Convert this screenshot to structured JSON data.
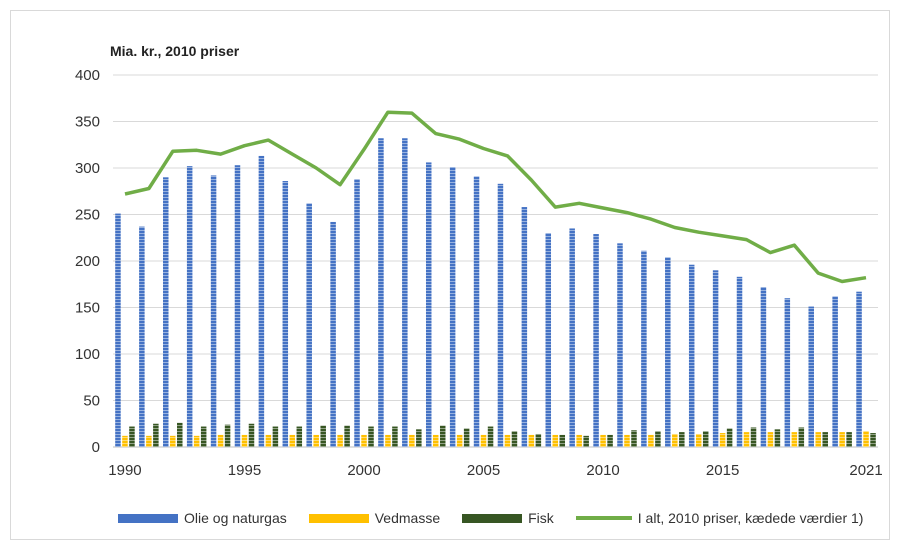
{
  "chart_data": {
    "type": "bar+line",
    "unit_label": "Mia. kr., 2010 priser",
    "years": [
      1990,
      1991,
      1992,
      1993,
      1994,
      1995,
      1996,
      1997,
      1998,
      1999,
      2000,
      2001,
      2002,
      2003,
      2004,
      2005,
      2006,
      2007,
      2008,
      2009,
      2010,
      2011,
      2012,
      2013,
      2014,
      2015,
      2016,
      2017,
      2018,
      2019,
      2020,
      2021
    ],
    "x_tick_labels": [
      "1990",
      "1995",
      "2000",
      "2005",
      "2010",
      "2015",
      "2021"
    ],
    "x_tick_years": [
      1990,
      1995,
      2000,
      2005,
      2010,
      2015,
      2021
    ],
    "y_ticks": [
      0,
      50,
      100,
      150,
      200,
      250,
      300,
      350,
      400
    ],
    "ylim": [
      0,
      400
    ],
    "grid": true,
    "legend_position": "bottom",
    "series": [
      {
        "name": "Olie og naturgas",
        "kind": "bar",
        "color": "#4472c4",
        "values": [
          251,
          237,
          290,
          302,
          292,
          303,
          313,
          286,
          262,
          242,
          288,
          332,
          332,
          306,
          301,
          291,
          283,
          258,
          230,
          235,
          229,
          219,
          211,
          204,
          196,
          190,
          183,
          172,
          160,
          151,
          162,
          167
        ]
      },
      {
        "name": "Vedmasse",
        "kind": "bar",
        "color": "#ffc000",
        "values": [
          12,
          12,
          12,
          12,
          13,
          13,
          13,
          13,
          13,
          13,
          13,
          13,
          13,
          13,
          13,
          13,
          13,
          13,
          13,
          13,
          13,
          13,
          13,
          14,
          14,
          15,
          16,
          16,
          16,
          16,
          16,
          17
        ]
      },
      {
        "name": "Fisk",
        "kind": "bar",
        "color": "#375623",
        "values": [
          22,
          25,
          26,
          22,
          24,
          25,
          22,
          22,
          23,
          23,
          22,
          22,
          19,
          23,
          20,
          22,
          17,
          14,
          13,
          12,
          13,
          18,
          17,
          16,
          17,
          20,
          21,
          19,
          21,
          16,
          16,
          15
        ]
      },
      {
        "name": "I alt, 2010 priser, kædede værdier 1)",
        "kind": "line",
        "color": "#70ad47",
        "values": [
          272,
          278,
          318,
          319,
          315,
          324,
          330,
          315,
          300,
          282,
          320,
          360,
          359,
          337,
          331,
          321,
          313,
          287,
          258,
          262,
          257,
          252,
          245,
          236,
          231,
          227,
          223,
          209,
          217,
          187,
          178,
          182
        ]
      }
    ]
  }
}
